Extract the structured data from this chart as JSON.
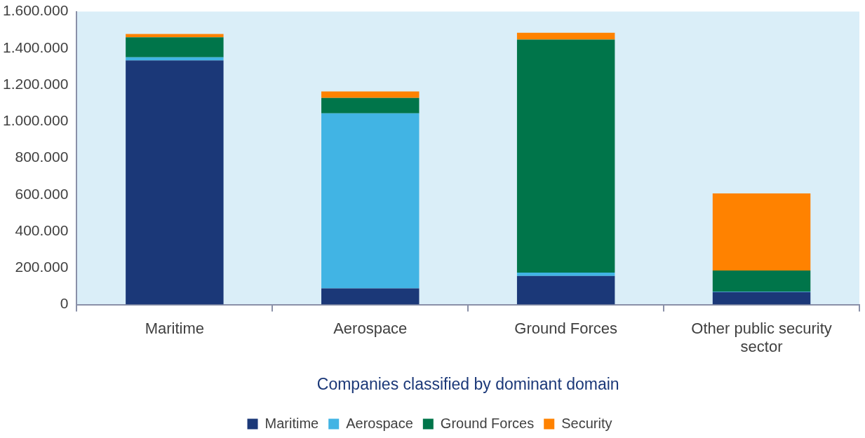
{
  "chart_data": {
    "type": "bar",
    "stacked": true,
    "xlabel": "Companies classified by dominant domain",
    "categories": [
      "Maritime",
      "Aerospace",
      "Ground Forces",
      "Other public security sector"
    ],
    "series": [
      {
        "name": "Maritime",
        "color": "#1b3878",
        "values": [
          1333000,
          88000,
          156000,
          68000
        ]
      },
      {
        "name": "Aerospace",
        "color": "#41b4e4",
        "values": [
          18000,
          956000,
          19000,
          3000
        ]
      },
      {
        "name": "Ground Forces",
        "color": "#00754a",
        "values": [
          109000,
          85000,
          1272000,
          115000
        ]
      },
      {
        "name": "Security",
        "color": "#ff8200",
        "values": [
          18000,
          35000,
          38000,
          421000
        ]
      }
    ],
    "ylim": [
      0,
      1600000
    ],
    "yticks": [
      0,
      {
        "value": 200000,
        "label": "200.000"
      },
      {
        "value": 400000,
        "label": "400.000"
      },
      {
        "value": 600000,
        "label": "600.000"
      },
      {
        "value": 800000,
        "label": "800.000"
      },
      {
        "value": 1000000,
        "label": "1.000.000"
      },
      {
        "value": 1200000,
        "label": "1.200.000"
      },
      {
        "value": 1400000,
        "label": "1.400.000"
      },
      {
        "value": 1600000,
        "label": "1.600.000"
      }
    ],
    "grid": false,
    "legend": "bottom"
  }
}
